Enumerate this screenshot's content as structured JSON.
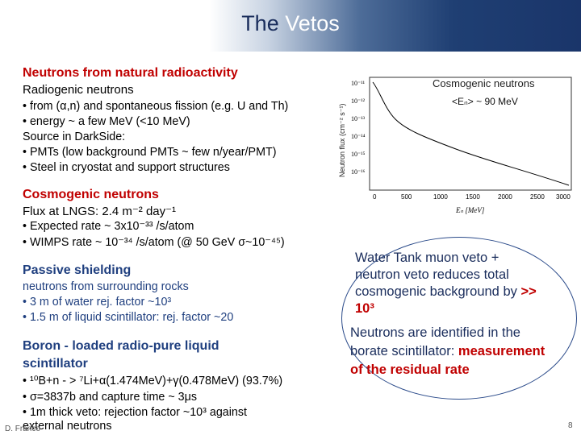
{
  "slide": {
    "title_part1": "The",
    "title_part2": "Vetos",
    "footer_author": "D. Franco",
    "page_number": "8"
  },
  "sections": [
    {
      "heading": "Neutrons from natural radioactivity",
      "lines": [
        "Radiogenic neutrons",
        "• from (α,n) and spontaneous fission (e.g. U and Th)",
        "• energy ~ a few MeV (<10 MeV)",
        "Source in DarkSide:",
        "• PMTs (low background PMTs ~ few n/year/PMT)",
        "• Steel in cryostat and support structures"
      ]
    },
    {
      "heading": "Cosmogenic neutrons",
      "lines": [
        "Flux at LNGS: 2.4 m⁻² day⁻¹",
        "• Expected rate ~ 3x10⁻³³ /s/atom",
        "• WIMPS rate ~ 10⁻³⁴ /s/atom (@ 50 GeV σ~10⁻⁴⁵)"
      ]
    },
    {
      "heading": "Passive shielding",
      "lines": [
        "neutrons from surrounding rocks",
        "• 3 m of water rej. factor ~10³",
        "• 1.5 m of liquid scintillator: rej. factor ~20"
      ]
    },
    {
      "heading_line1": "Boron - loaded radio-pure liquid",
      "heading_line2": "scintillator",
      "lines": [
        "• ¹⁰B+n  - > ⁷Li+α(1.474MeV)+γ(0.478MeV) (93.7%)",
        "• σ=3837b and capture time ~ 3μs",
        "• 1m thick veto: rejection factor ~10³ against",
        "  external neutrons"
      ]
    }
  ],
  "plot": {
    "caption": "Cosmogenic neutrons",
    "annotation": "<Eₙ> ~ 90 MeV",
    "ylabel": "Neutron flux (cm⁻² s⁻¹)",
    "xlabel": "Eₙ [MeV]",
    "yticks": [
      "10⁻¹¹",
      "10⁻¹²",
      "10⁻¹³",
      "10⁻¹⁴",
      "10⁻¹⁵",
      "10⁻¹⁶"
    ],
    "xticks": [
      "0",
      "500",
      "1000",
      "1500",
      "2000",
      "2500",
      "3000"
    ]
  },
  "callout": {
    "p1": [
      "Water Tank muon veto +",
      "neutron veto reduces total",
      "cosmogenic background by",
      "10³"
    ],
    "p1_emph": ">>",
    "p2": [
      "Neutrons are identified in the",
      "borate scintillator:",
      "of the residual rate"
    ],
    "p2_emph1": "measurement"
  },
  "colors": {
    "accent_red": "#c00000",
    "navy": "#1f3f73",
    "text_blue": "#1a2d5c"
  }
}
